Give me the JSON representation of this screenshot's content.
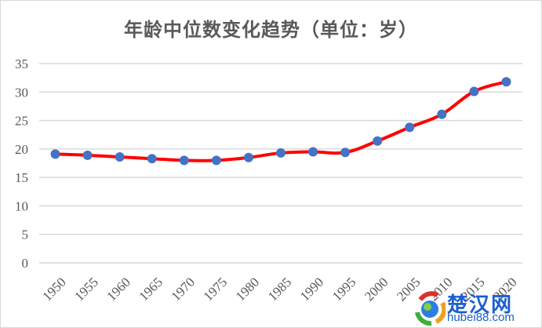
{
  "chart_data": {
    "type": "line",
    "title": "年龄中位数变化趋势（单位：岁）",
    "xlabel": "",
    "ylabel": "",
    "categories": [
      "1950",
      "1955",
      "1960",
      "1965",
      "1970",
      "1975",
      "1980",
      "1985",
      "1990",
      "1995",
      "2000",
      "2005",
      "2010",
      "2015",
      "2020"
    ],
    "series": [
      {
        "name": "年龄中位数",
        "values": [
          19.1,
          18.9,
          18.6,
          18.3,
          18.0,
          18.0,
          18.5,
          19.3,
          19.5,
          19.4,
          21.4,
          23.8,
          26.1,
          30.1,
          31.8
        ],
        "line_color": "#ff0000",
        "marker_color": "#4472c4"
      }
    ],
    "ylim": [
      0,
      35
    ],
    "yticks": [
      0,
      5,
      10,
      15,
      20,
      25,
      30,
      35
    ],
    "grid": true,
    "legend": "none",
    "smooth": true
  },
  "watermark": {
    "name_cn": "楚汉网",
    "url": "hubei88.com"
  }
}
